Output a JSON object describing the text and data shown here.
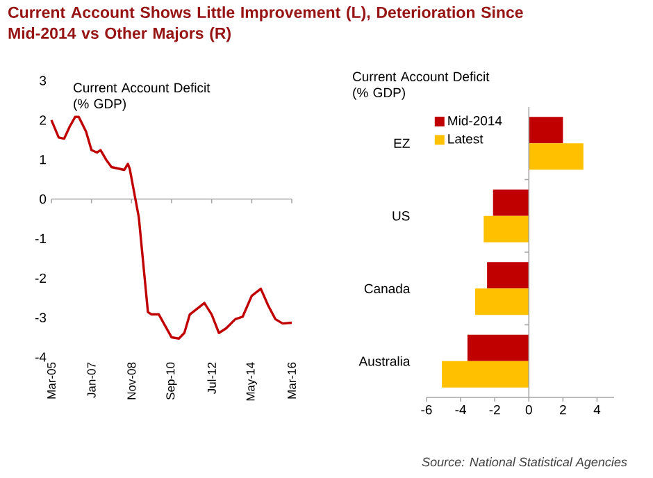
{
  "chart_data": [
    {
      "type": "line",
      "title": "Current Account Shows Little Improvement (L), Deterioration Since Mid-2014 vs Other Majors (R)",
      "ylabel": "Current Account Deficit (% GDP)",
      "x": [
        "2005-03",
        "2005-07",
        "2005-10",
        "2006-01",
        "2006-04",
        "2006-06",
        "2006-10",
        "2007-01",
        "2007-04",
        "2007-06",
        "2007-09",
        "2007-12",
        "2008-04",
        "2008-07",
        "2008-09",
        "2008-10",
        "2009-03",
        "2009-08",
        "2009-10",
        "2010-02",
        "2010-09",
        "2011-01",
        "2011-04",
        "2011-07",
        "2011-12",
        "2012-03",
        "2012-07",
        "2012-11",
        "2013-03",
        "2013-08",
        "2013-12",
        "2014-05",
        "2014-10",
        "2015-02",
        "2015-06",
        "2015-10",
        "2016-03"
      ],
      "values": [
        2.0,
        1.56,
        1.53,
        1.83,
        2.08,
        2.08,
        1.71,
        1.24,
        1.18,
        1.24,
        1.0,
        0.81,
        0.77,
        0.74,
        0.89,
        0.77,
        -0.46,
        -2.86,
        -2.92,
        -2.92,
        -3.5,
        -3.53,
        -3.39,
        -2.92,
        -2.74,
        -2.63,
        -2.92,
        -3.39,
        -3.27,
        -3.04,
        -2.98,
        -2.45,
        -2.27,
        -2.69,
        -3.04,
        -3.15,
        -3.13
      ],
      "color": "#c00000",
      "xlim": [
        "2005-03",
        "2016-03"
      ],
      "xticks": [
        {
          "value": "2005-03",
          "label": "Mar-05"
        },
        {
          "value": "2007-01",
          "label": "Jan-07"
        },
        {
          "value": "2008-11",
          "label": "Nov-08"
        },
        {
          "value": "2010-09",
          "label": "Sep-10"
        },
        {
          "value": "2012-07",
          "label": "Jul-12"
        },
        {
          "value": "2014-05",
          "label": "May-14"
        },
        {
          "value": "2016-03",
          "label": "Mar-16"
        }
      ],
      "ylim": [
        -4,
        3
      ],
      "yticks": [
        -4,
        -3,
        -2,
        -1,
        0,
        1,
        2,
        3
      ]
    },
    {
      "type": "bar",
      "orientation": "horizontal",
      "ylabel": "Current Account Deficit (% GDP)",
      "categories": [
        "EZ",
        "US",
        "Canada",
        "Australia"
      ],
      "series": [
        {
          "name": "Mid-2014",
          "color": "#c00000",
          "values": [
            2.0,
            -2.1,
            -2.45,
            -3.6
          ]
        },
        {
          "name": "Latest",
          "color": "#ffc000",
          "values": [
            3.2,
            -2.65,
            -3.15,
            -5.1
          ]
        }
      ],
      "xlim": [
        -6,
        5
      ],
      "xticks": [
        -6,
        -4,
        -2,
        0,
        2,
        4
      ],
      "legend": "top left",
      "annotations": [
        "Source: National Statistical Agencies"
      ]
    }
  ]
}
